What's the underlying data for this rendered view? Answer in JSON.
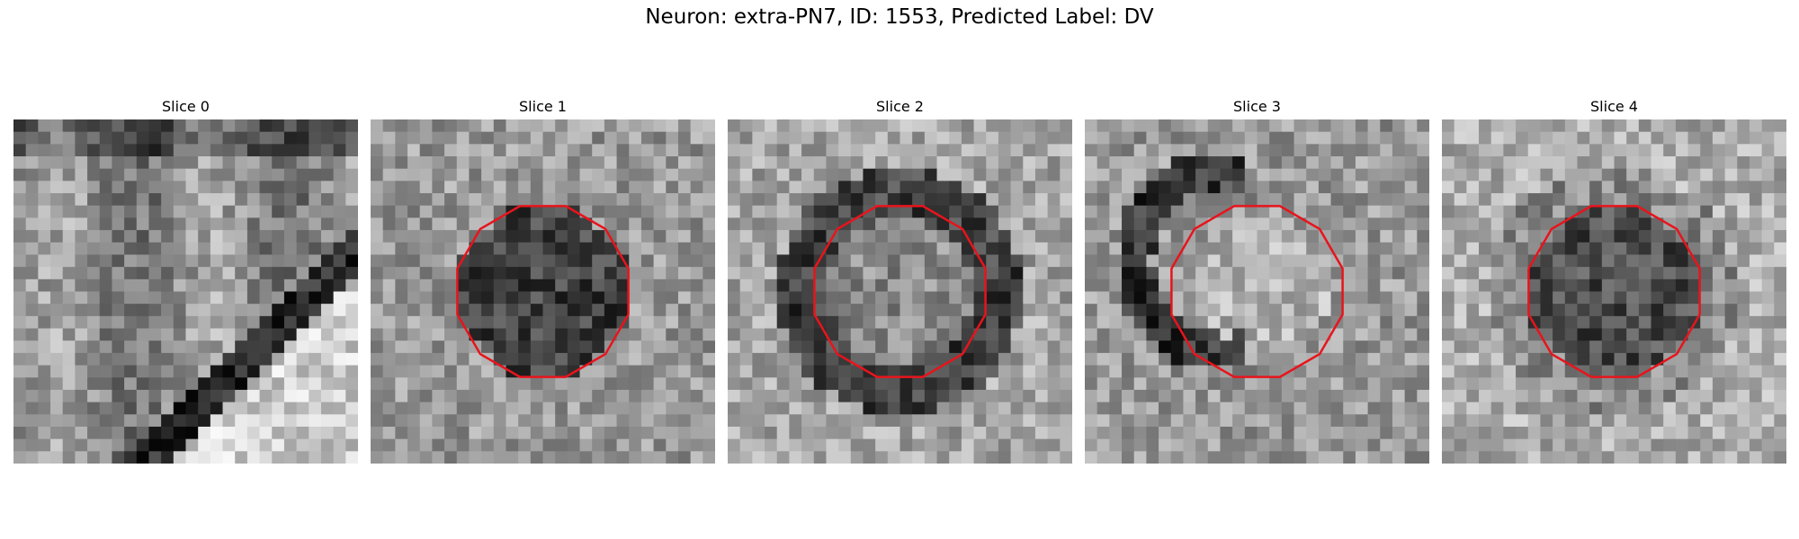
{
  "figure": {
    "title": "Neuron: extra-PN7, ID: 1553, Predicted Label: DV"
  },
  "panels": [
    {
      "title": "Slice 0",
      "pattern": "edge",
      "outline": false
    },
    {
      "title": "Slice 1",
      "pattern": "dark-disc",
      "outline": true
    },
    {
      "title": "Slice 2",
      "pattern": "dark-ring",
      "outline": true
    },
    {
      "title": "Slice 3",
      "pattern": "ring-left",
      "outline": true
    },
    {
      "title": "Slice 4",
      "pattern": "dark-disc-soft",
      "outline": true
    }
  ],
  "outline_color": "#e8141c",
  "colormap": "gray"
}
